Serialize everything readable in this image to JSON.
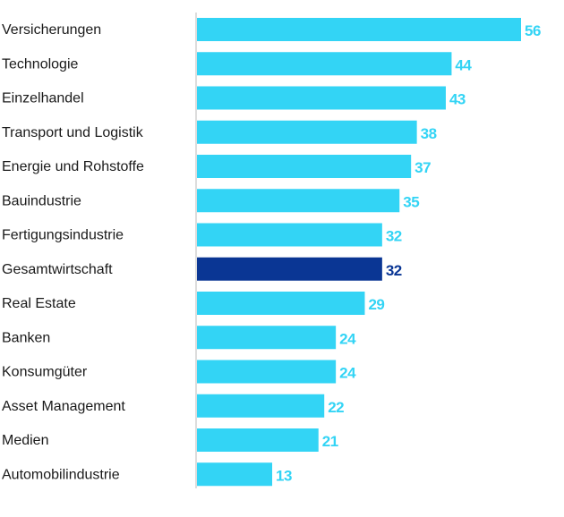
{
  "chart_data": {
    "type": "bar",
    "orientation": "horizontal",
    "categories": [
      "Versicherungen",
      "Technologie",
      "Einzelhandel",
      "Transport und Logistik",
      "Energie und Rohstoffe",
      "Bauindustrie",
      "Fertigungsindustrie",
      "Gesamtwirtschaft",
      "Real Estate",
      "Banken",
      "Konsumgüter",
      "Asset Management",
      "Medien",
      "Automobilindustrie"
    ],
    "values": [
      56,
      44,
      43,
      38,
      37,
      35,
      32,
      32,
      29,
      24,
      24,
      22,
      21,
      13
    ],
    "highlight_category": "Gesamtwirtschaft",
    "colors": {
      "bar": "#33d4f5",
      "highlight": "#0a3694",
      "axis": "#bbbbbb"
    },
    "xlim": [
      0,
      56
    ],
    "grid": false,
    "legend": "none"
  }
}
